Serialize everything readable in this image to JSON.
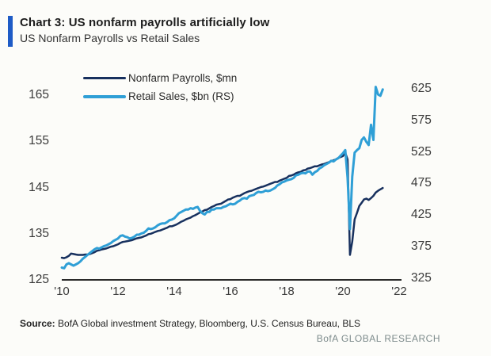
{
  "header": {
    "title": "Chart 3: US nonfarm payrolls artificially low",
    "subtitle": "US Nonfarm Payrolls vs Retail Sales",
    "accent_color": "#1e5bc6"
  },
  "chart_data": {
    "type": "line",
    "title": "US Nonfarm Payrolls vs Retail Sales",
    "grid": false,
    "legend_position": "top-left",
    "x_start_year": 2010,
    "x_step_months": 1,
    "xlim": [
      2010,
      2022.2
    ],
    "x_ticks": [
      {
        "year": 2010,
        "label": "'10"
      },
      {
        "year": 2012,
        "label": "'12"
      },
      {
        "year": 2014,
        "label": "'14"
      },
      {
        "year": 2016,
        "label": "'16"
      },
      {
        "year": 2018,
        "label": "'18"
      },
      {
        "year": 2020,
        "label": "'20"
      },
      {
        "year": 2022,
        "label": "'22"
      }
    ],
    "left_axis": {
      "ticks": [
        125,
        135,
        145,
        155,
        165
      ],
      "range": [
        125,
        166
      ]
    },
    "right_axis": {
      "ticks": [
        325,
        375,
        425,
        475,
        525,
        575,
        625
      ],
      "range": [
        325,
        633
      ]
    },
    "axis_line_color": "#2a2a2a",
    "series": [
      {
        "id": "nonfarm-payrolls",
        "name": "Nonfarm Payrolls, $mn",
        "axis": "left",
        "color": "#17305e",
        "values": [
          129.8,
          129.7,
          129.9,
          130.2,
          130.7,
          130.6,
          130.5,
          130.4,
          130.4,
          130.4,
          130.5,
          130.5,
          130.6,
          130.8,
          131.0,
          131.3,
          131.4,
          131.6,
          131.7,
          131.8,
          132.0,
          132.2,
          132.3,
          132.5,
          132.7,
          133.0,
          133.2,
          133.3,
          133.4,
          133.5,
          133.6,
          133.8,
          134.0,
          134.1,
          134.2,
          134.4,
          134.6,
          134.9,
          135.0,
          135.2,
          135.4,
          135.6,
          135.7,
          135.9,
          136.1,
          136.3,
          136.6,
          136.6,
          136.8,
          137.0,
          137.3,
          137.6,
          137.8,
          138.1,
          138.3,
          138.5,
          138.8,
          139.0,
          139.3,
          139.6,
          139.8,
          140.1,
          140.2,
          140.5,
          140.8,
          141.0,
          141.3,
          141.4,
          141.5,
          141.8,
          142.1,
          142.4,
          142.5,
          142.8,
          143.0,
          143.2,
          143.2,
          143.5,
          143.8,
          144.0,
          144.2,
          144.3,
          144.5,
          144.7,
          144.9,
          145.1,
          145.2,
          145.4,
          145.6,
          145.8,
          146.0,
          146.2,
          146.2,
          146.5,
          146.7,
          146.9,
          147.1,
          147.5,
          147.6,
          147.8,
          148.1,
          148.3,
          148.4,
          148.7,
          148.8,
          149.1,
          149.2,
          149.4,
          149.6,
          149.6,
          149.8,
          150.0,
          150.1,
          150.3,
          150.5,
          150.7,
          150.9,
          151.1,
          151.4,
          151.6,
          151.8,
          152.5,
          151.1,
          130.4,
          133.3,
          138.1,
          139.5,
          141.0,
          141.7,
          142.4,
          142.6,
          142.3,
          142.7,
          143.2,
          143.9,
          144.3,
          144.6,
          144.9
        ]
      },
      {
        "id": "retail-sales",
        "name": "Retail Sales, $bn (RS)",
        "axis": "right",
        "color": "#2f9fd6",
        "values": [
          342,
          341,
          347,
          349,
          347,
          345,
          347,
          349,
          352,
          356,
          359,
          362,
          365,
          368,
          371,
          373,
          372,
          374,
          376,
          377,
          379,
          381,
          384,
          386,
          388,
          392,
          393,
          391,
          390,
          388,
          389,
          391,
          394,
          394,
          396,
          397,
          400,
          404,
          403,
          404,
          406,
          409,
          411,
          412,
          412,
          414,
          417,
          418,
          420,
          424,
          428,
          430,
          432,
          434,
          434,
          436,
          435,
          437,
          438,
          432,
          428,
          426,
          430,
          430,
          434,
          434,
          436,
          436,
          436,
          438,
          439,
          441,
          443,
          442,
          443,
          446,
          448,
          451,
          452,
          451,
          455,
          456,
          457,
          460,
          462,
          461,
          462,
          464,
          463,
          464,
          466,
          468,
          472,
          474,
          477,
          478,
          480,
          481,
          482,
          484,
          488,
          489,
          491,
          492,
          491,
          494,
          494,
          489,
          493,
          495,
          499,
          501,
          504,
          506,
          508,
          511,
          510,
          513,
          515,
          519,
          523,
          528,
          484,
          403,
          486,
          524,
          528,
          531,
          544,
          548,
          541,
          536,
          568,
          544,
          628,
          616,
          614,
          624
        ]
      }
    ]
  },
  "footer": {
    "source_label": "Source:",
    "source_text": " BofA Global investment Strategy, Bloomberg, U.S. Census Bureau, BLS",
    "brand": "BofA GLOBAL RESEARCH"
  }
}
